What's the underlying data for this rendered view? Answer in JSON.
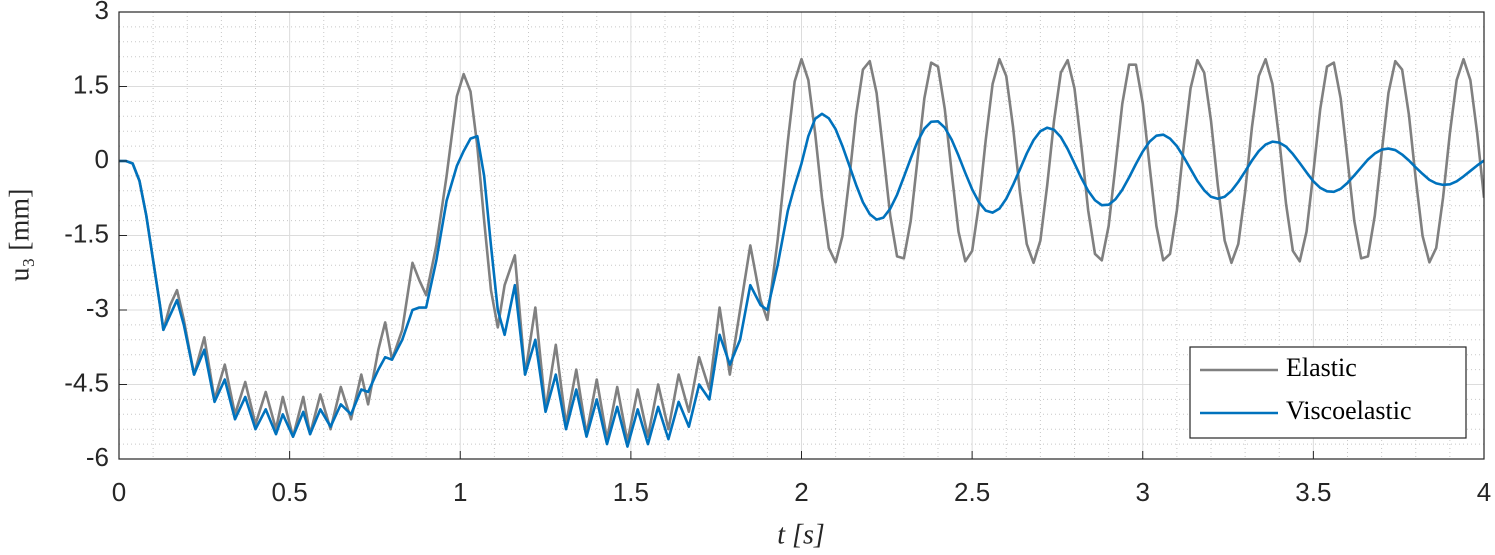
{
  "chart_data": {
    "type": "line",
    "xlabel": "t [s]",
    "ylabel": "u₃ [mm]",
    "x": [
      0,
      0.02,
      0.04,
      0.06,
      0.08,
      0.1,
      0.12,
      0.13,
      0.15,
      0.17,
      0.19,
      0.22,
      0.25,
      0.28,
      0.31,
      0.34,
      0.37,
      0.4,
      0.43,
      0.46,
      0.48,
      0.51,
      0.54,
      0.56,
      0.59,
      0.62,
      0.65,
      0.68,
      0.71,
      0.73,
      0.76,
      0.78,
      0.8,
      0.83,
      0.86,
      0.88,
      0.9,
      0.93,
      0.96,
      0.99,
      1.01,
      1.03,
      1.05,
      1.07,
      1.09,
      1.11,
      1.13,
      1.16,
      1.19,
      1.22,
      1.25,
      1.28,
      1.31,
      1.34,
      1.37,
      1.4,
      1.43,
      1.46,
      1.49,
      1.52,
      1.55,
      1.58,
      1.61,
      1.64,
      1.67,
      1.7,
      1.73,
      1.76,
      1.79,
      1.82,
      1.85,
      1.88,
      1.9,
      1.93,
      1.96,
      1.98,
      2,
      2.02,
      2.04,
      2.06,
      2.08,
      2.1,
      2.12,
      2.14,
      2.16,
      2.18,
      2.2,
      2.22,
      2.24,
      2.26,
      2.28,
      2.3,
      2.32,
      2.34,
      2.36,
      2.38,
      2.4,
      2.42,
      2.44,
      2.46,
      2.48,
      2.5,
      2.52,
      2.54,
      2.56,
      2.58,
      2.6,
      2.62,
      2.64,
      2.66,
      2.68,
      2.7,
      2.72,
      2.74,
      2.76,
      2.78,
      2.8,
      2.82,
      2.84,
      2.86,
      2.88,
      2.9,
      2.92,
      2.94,
      2.96,
      2.98,
      3,
      3.02,
      3.04,
      3.06,
      3.08,
      3.1,
      3.12,
      3.14,
      3.16,
      3.18,
      3.2,
      3.22,
      3.24,
      3.26,
      3.28,
      3.3,
      3.32,
      3.34,
      3.36,
      3.38,
      3.4,
      3.42,
      3.44,
      3.46,
      3.48,
      3.5,
      3.52,
      3.54,
      3.56,
      3.58,
      3.6,
      3.62,
      3.64,
      3.66,
      3.68,
      3.7,
      3.72,
      3.74,
      3.76,
      3.78,
      3.8,
      3.82,
      3.84,
      3.86,
      3.88,
      3.9,
      3.92,
      3.94,
      3.96,
      3.98,
      4
    ],
    "series": [
      {
        "name": "Elastic",
        "color": "#808080",
        "values": [
          0,
          0,
          -0.05,
          -0.4,
          -1.1,
          -2.0,
          -2.9,
          -3.4,
          -2.9,
          -2.6,
          -3.2,
          -4.3,
          -3.55,
          -4.8,
          -4.1,
          -5.1,
          -4.45,
          -5.3,
          -4.65,
          -5.4,
          -4.75,
          -5.55,
          -4.75,
          -5.5,
          -4.7,
          -5.4,
          -4.55,
          -5.2,
          -4.3,
          -4.9,
          -3.8,
          -3.25,
          -4.0,
          -3.4,
          -2.05,
          -2.4,
          -2.7,
          -1.7,
          -0.3,
          1.3,
          1.75,
          1.4,
          0.3,
          -1.2,
          -2.6,
          -3.35,
          -2.5,
          -1.9,
          -4.3,
          -2.95,
          -5.0,
          -3.7,
          -5.3,
          -4.2,
          -5.5,
          -4.4,
          -5.6,
          -4.55,
          -5.65,
          -4.6,
          -5.55,
          -4.5,
          -5.4,
          -4.3,
          -5.05,
          -3.95,
          -4.6,
          -2.95,
          -4.3,
          -3.0,
          -1.7,
          -2.8,
          -3.2,
          -1.6,
          0.4,
          1.6,
          2.05,
          1.63,
          0.56,
          -0.74,
          -1.75,
          -2.04,
          -1.51,
          -0.36,
          0.93,
          1.84,
          2.01,
          1.37,
          0.16,
          -1.1,
          -1.92,
          -1.96,
          -1.21,
          0.03,
          1.26,
          1.98,
          1.9,
          1.04,
          -0.23,
          -1.42,
          -2.02,
          -1.81,
          -0.87,
          0.43,
          1.55,
          2.05,
          1.71,
          0.68,
          -0.62,
          -1.67,
          -2.05,
          -1.6,
          -0.49,
          0.81,
          1.78,
          2.03,
          1.46,
          0.3,
          -0.99,
          -1.87,
          -2.0,
          -1.31,
          -0.1,
          1.15,
          1.94,
          1.94,
          1.16,
          -0.1,
          -1.31,
          -2.0,
          -1.87,
          -0.99,
          0.3,
          1.46,
          2.03,
          1.78,
          0.81,
          -0.49,
          -1.6,
          -2.05,
          -1.67,
          -0.62,
          0.68,
          1.71,
          2.05,
          1.55,
          0.43,
          -0.87,
          -1.81,
          -2.02,
          -1.42,
          -0.23,
          1.04,
          1.9,
          1.98,
          1.26,
          0.03,
          -1.21,
          -1.96,
          -1.92,
          -1.1,
          0.16,
          1.37,
          2.01,
          1.84,
          0.93,
          -0.36,
          -1.51,
          -2.04,
          -1.75,
          -0.74,
          0.56,
          1.63,
          2.05,
          1.63,
          0.56,
          -0.74
        ]
      },
      {
        "name": "Viscoelastic",
        "color": "#0072bd",
        "values": [
          0,
          0,
          -0.05,
          -0.4,
          -1.1,
          -2.0,
          -2.9,
          -3.4,
          -3.1,
          -2.8,
          -3.3,
          -4.3,
          -3.8,
          -4.85,
          -4.4,
          -5.2,
          -4.75,
          -5.4,
          -5.0,
          -5.5,
          -5.1,
          -5.55,
          -5.05,
          -5.5,
          -5.0,
          -5.35,
          -4.9,
          -5.1,
          -4.6,
          -4.65,
          -4.2,
          -3.95,
          -4.0,
          -3.6,
          -3.0,
          -2.95,
          -2.95,
          -2.0,
          -0.8,
          -0.1,
          0.2,
          0.45,
          0.5,
          -0.3,
          -1.7,
          -3.0,
          -3.5,
          -2.5,
          -4.3,
          -3.6,
          -5.05,
          -4.3,
          -5.4,
          -4.6,
          -5.55,
          -4.8,
          -5.7,
          -4.95,
          -5.75,
          -5.0,
          -5.7,
          -4.95,
          -5.6,
          -4.85,
          -5.35,
          -4.5,
          -4.8,
          -3.5,
          -4.1,
          -3.6,
          -2.5,
          -2.9,
          -3.0,
          -2.1,
          -1.0,
          -0.5,
          -0.05,
          0.5,
          0.85,
          0.95,
          0.86,
          0.64,
          0.3,
          -0.09,
          -0.48,
          -0.83,
          -1.07,
          -1.18,
          -1.14,
          -0.96,
          -0.68,
          -0.32,
          0.05,
          0.39,
          0.65,
          0.79,
          0.8,
          0.67,
          0.43,
          0.11,
          -0.24,
          -0.57,
          -0.83,
          -1.0,
          -1.04,
          -0.96,
          -0.76,
          -0.48,
          -0.17,
          0.15,
          0.42,
          0.6,
          0.67,
          0.63,
          0.48,
          0.24,
          -0.05,
          -0.34,
          -0.6,
          -0.79,
          -0.89,
          -0.88,
          -0.77,
          -0.58,
          -0.33,
          -0.06,
          0.19,
          0.39,
          0.51,
          0.53,
          0.45,
          0.3,
          0.08,
          -0.16,
          -0.4,
          -0.59,
          -0.72,
          -0.76,
          -0.72,
          -0.6,
          -0.42,
          -0.21,
          0.01,
          0.2,
          0.33,
          0.39,
          0.37,
          0.29,
          0.14,
          -0.04,
          -0.23,
          -0.41,
          -0.54,
          -0.61,
          -0.62,
          -0.56,
          -0.44,
          -0.29,
          -0.13,
          0.03,
          0.15,
          0.23,
          0.25,
          0.22,
          0.13,
          0.01,
          -0.13,
          -0.26,
          -0.38,
          -0.45,
          -0.48,
          -0.47,
          -0.41,
          -0.31,
          -0.2,
          -0.09,
          0.01
        ]
      }
    ],
    "xlim": [
      0,
      4
    ],
    "xticks": [
      0,
      0.5,
      1,
      1.5,
      2,
      2.5,
      3,
      3.5,
      4
    ],
    "ylim": [
      -6,
      3
    ],
    "yticks": [
      -6,
      -4.5,
      -3,
      -1.5,
      0,
      1.5,
      3
    ],
    "grid": true,
    "minor_grid": true,
    "legend": "lower right"
  }
}
